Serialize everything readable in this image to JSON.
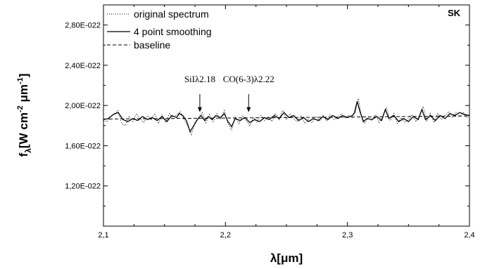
{
  "chart_data": {
    "type": "line",
    "title": "",
    "tag": "SK",
    "xlabel": "λ[μm]",
    "ylabel": {
      "main": "f",
      "sub": "λ",
      "rest": "[W cm",
      "sup1": "-2",
      "mid": " μm",
      "sup2": "-1",
      "end": "]"
    },
    "xlim": [
      2.1,
      2.4
    ],
    "ylim": [
      8e-23,
      3e-22
    ],
    "xticks": [
      2.1,
      2.2,
      2.3,
      2.4
    ],
    "xtick_labels": [
      "2,1",
      "2,2",
      "2,3",
      "2,4"
    ],
    "yticks": [
      1.2e-22,
      1.6e-22,
      2e-22,
      2.4e-22,
      2.8e-22
    ],
    "ytick_labels": [
      "1,20E-022",
      "1,60E-022",
      "2,00E-022",
      "2,40E-022",
      "2,80E-022"
    ],
    "legend": {
      "placement": "top-left",
      "entries": [
        {
          "label": "original spectrum",
          "style": "dotted"
        },
        {
          "label": "4 point smoothing",
          "style": "solid"
        },
        {
          "label": "baseline",
          "style": "dashed"
        }
      ]
    },
    "annotations": [
      {
        "text": "SiIλ2.18",
        "x": 2.179,
        "y": 1.92e-22
      },
      {
        "text": "CO(6-3)λ2.22",
        "x": 2.219,
        "y": 1.92e-22
      }
    ],
    "series": [
      {
        "name": "4 point smoothing",
        "style": "solid",
        "points": [
          [
            2.1,
            1.86e-22
          ],
          [
            2.104,
            1.87e-22
          ],
          [
            2.108,
            1.91e-22
          ],
          [
            2.112,
            1.93e-22
          ],
          [
            2.116,
            1.86e-22
          ],
          [
            2.12,
            1.84e-22
          ],
          [
            2.124,
            1.87e-22
          ],
          [
            2.128,
            1.85e-22
          ],
          [
            2.132,
            1.89e-22
          ],
          [
            2.136,
            1.86e-22
          ],
          [
            2.14,
            1.88e-22
          ],
          [
            2.144,
            1.85e-22
          ],
          [
            2.148,
            1.89e-22
          ],
          [
            2.152,
            1.84e-22
          ],
          [
            2.156,
            1.9e-22
          ],
          [
            2.16,
            1.88e-22
          ],
          [
            2.162,
            1.92e-22
          ],
          [
            2.165,
            1.9e-22
          ],
          [
            2.168,
            1.85e-22
          ],
          [
            2.171,
            1.74e-22
          ],
          [
            2.174,
            1.8e-22
          ],
          [
            2.177,
            1.86e-22
          ],
          [
            2.18,
            1.9e-22
          ],
          [
            2.183,
            1.85e-22
          ],
          [
            2.186,
            1.89e-22
          ],
          [
            2.189,
            1.86e-22
          ],
          [
            2.192,
            1.9e-22
          ],
          [
            2.196,
            1.88e-22
          ],
          [
            2.199,
            1.92e-22
          ],
          [
            2.202,
            1.84e-22
          ],
          [
            2.205,
            1.79e-22
          ],
          [
            2.208,
            1.87e-22
          ],
          [
            2.212,
            1.85e-22
          ],
          [
            2.216,
            1.88e-22
          ],
          [
            2.22,
            1.83e-22
          ],
          [
            2.224,
            1.86e-22
          ],
          [
            2.228,
            1.84e-22
          ],
          [
            2.232,
            1.88e-22
          ],
          [
            2.236,
            1.86e-22
          ],
          [
            2.24,
            1.9e-22
          ],
          [
            2.244,
            1.87e-22
          ],
          [
            2.248,
            1.93e-22
          ],
          [
            2.252,
            1.88e-22
          ],
          [
            2.256,
            1.9e-22
          ],
          [
            2.26,
            1.85e-22
          ],
          [
            2.264,
            1.88e-22
          ],
          [
            2.268,
            1.84e-22
          ],
          [
            2.272,
            1.87e-22
          ],
          [
            2.276,
            1.85e-22
          ],
          [
            2.28,
            1.89e-22
          ],
          [
            2.284,
            1.86e-22
          ],
          [
            2.288,
            1.9e-22
          ],
          [
            2.292,
            1.87e-22
          ],
          [
            2.296,
            1.9e-22
          ],
          [
            2.3,
            1.88e-22
          ],
          [
            2.304,
            1.9e-22
          ],
          [
            2.306,
            1.93e-22
          ],
          [
            2.308,
            2.04e-22
          ],
          [
            2.31,
            1.95e-22
          ],
          [
            2.313,
            1.84e-22
          ],
          [
            2.316,
            1.87e-22
          ],
          [
            2.32,
            1.86e-22
          ],
          [
            2.324,
            1.89e-22
          ],
          [
            2.328,
            1.85e-22
          ],
          [
            2.331,
            1.96e-22
          ],
          [
            2.334,
            1.87e-22
          ],
          [
            2.338,
            1.9e-22
          ],
          [
            2.342,
            1.84e-22
          ],
          [
            2.346,
            1.87e-22
          ],
          [
            2.35,
            1.84e-22
          ],
          [
            2.354,
            1.89e-22
          ],
          [
            2.358,
            1.86e-22
          ],
          [
            2.361,
            1.96e-22
          ],
          [
            2.364,
            1.86e-22
          ],
          [
            2.368,
            1.9e-22
          ],
          [
            2.372,
            1.85e-22
          ],
          [
            2.376,
            1.9e-22
          ],
          [
            2.38,
            1.87e-22
          ],
          [
            2.384,
            1.92e-22
          ],
          [
            2.388,
            1.9e-22
          ],
          [
            2.392,
            1.93e-22
          ],
          [
            2.396,
            1.91e-22
          ],
          [
            2.4,
            1.9e-22
          ]
        ]
      },
      {
        "name": "original spectrum",
        "style": "dotted",
        "points": [
          [
            2.1,
            1.85e-22
          ],
          [
            2.103,
            1.84e-22
          ],
          [
            2.106,
            1.89e-22
          ],
          [
            2.109,
            1.92e-22
          ],
          [
            2.112,
            1.95e-22
          ],
          [
            2.115,
            1.82e-22
          ],
          [
            2.118,
            1.8e-22
          ],
          [
            2.121,
            1.89e-22
          ],
          [
            2.124,
            1.84e-22
          ],
          [
            2.127,
            1.92e-22
          ],
          [
            2.13,
            1.87e-22
          ],
          [
            2.133,
            1.83e-22
          ],
          [
            2.136,
            1.9e-22
          ],
          [
            2.139,
            1.86e-22
          ],
          [
            2.142,
            1.92e-22
          ],
          [
            2.145,
            1.82e-22
          ],
          [
            2.148,
            1.91e-22
          ],
          [
            2.151,
            1.83e-22
          ],
          [
            2.154,
            1.92e-22
          ],
          [
            2.157,
            1.87e-22
          ],
          [
            2.16,
            1.91e-22
          ],
          [
            2.163,
            1.94e-22
          ],
          [
            2.166,
            1.86e-22
          ],
          [
            2.169,
            1.8e-22
          ],
          [
            2.172,
            1.71e-22
          ],
          [
            2.175,
            1.83e-22
          ],
          [
            2.178,
            1.88e-22
          ],
          [
            2.181,
            1.93e-22
          ],
          [
            2.184,
            1.83e-22
          ],
          [
            2.187,
            1.91e-22
          ],
          [
            2.19,
            1.84e-22
          ],
          [
            2.193,
            1.92e-22
          ],
          [
            2.196,
            1.86e-22
          ],
          [
            2.199,
            1.95e-22
          ],
          [
            2.202,
            1.82e-22
          ],
          [
            2.205,
            1.76e-22
          ],
          [
            2.208,
            1.89e-22
          ],
          [
            2.211,
            1.82e-22
          ],
          [
            2.214,
            1.9e-22
          ],
          [
            2.217,
            1.85e-22
          ],
          [
            2.22,
            1.8e-22
          ],
          [
            2.223,
            1.88e-22
          ],
          [
            2.226,
            1.83e-22
          ],
          [
            2.229,
            1.9e-22
          ],
          [
            2.232,
            1.85e-22
          ],
          [
            2.235,
            1.89e-22
          ],
          [
            2.238,
            1.84e-22
          ],
          [
            2.241,
            1.92e-22
          ],
          [
            2.244,
            1.86e-22
          ],
          [
            2.247,
            1.95e-22
          ],
          [
            2.25,
            1.86e-22
          ],
          [
            2.253,
            1.92e-22
          ],
          [
            2.256,
            1.87e-22
          ],
          [
            2.259,
            1.84e-22
          ],
          [
            2.262,
            1.9e-22
          ],
          [
            2.265,
            1.82e-22
          ],
          [
            2.268,
            1.86e-22
          ],
          [
            2.271,
            1.83e-22
          ],
          [
            2.274,
            1.89e-22
          ],
          [
            2.277,
            1.84e-22
          ],
          [
            2.28,
            1.9e-22
          ],
          [
            2.283,
            1.85e-22
          ],
          [
            2.286,
            1.91e-22
          ],
          [
            2.289,
            1.86e-22
          ],
          [
            2.292,
            1.88e-22
          ],
          [
            2.295,
            1.92e-22
          ],
          [
            2.298,
            1.87e-22
          ],
          [
            2.301,
            1.9e-22
          ],
          [
            2.304,
            1.88e-22
          ],
          [
            2.307,
            2.01e-22
          ],
          [
            2.309,
            2.07e-22
          ],
          [
            2.311,
            1.92e-22
          ],
          [
            2.314,
            1.82e-22
          ],
          [
            2.317,
            1.88e-22
          ],
          [
            2.32,
            1.85e-22
          ],
          [
            2.323,
            1.91e-22
          ],
          [
            2.326,
            1.83e-22
          ],
          [
            2.329,
            1.9e-22
          ],
          [
            2.332,
            1.98e-22
          ],
          [
            2.335,
            1.85e-22
          ],
          [
            2.338,
            1.92e-22
          ],
          [
            2.341,
            1.82e-22
          ],
          [
            2.344,
            1.88e-22
          ],
          [
            2.347,
            1.83e-22
          ],
          [
            2.35,
            1.86e-22
          ],
          [
            2.353,
            1.91e-22
          ],
          [
            2.356,
            1.84e-22
          ],
          [
            2.359,
            1.9e-22
          ],
          [
            2.362,
            1.99e-22
          ],
          [
            2.365,
            1.84e-22
          ],
          [
            2.368,
            1.92e-22
          ],
          [
            2.371,
            1.83e-22
          ],
          [
            2.374,
            1.92e-22
          ],
          [
            2.377,
            1.86e-22
          ],
          [
            2.38,
            1.9e-22
          ],
          [
            2.383,
            1.94e-22
          ],
          [
            2.386,
            1.88e-22
          ],
          [
            2.389,
            1.93e-22
          ],
          [
            2.392,
            1.89e-22
          ],
          [
            2.395,
            1.93e-22
          ],
          [
            2.398,
            1.88e-22
          ],
          [
            2.4,
            1.91e-22
          ]
        ]
      },
      {
        "name": "baseline",
        "style": "dashed",
        "points": [
          [
            2.1,
            1.865e-22
          ],
          [
            2.4,
            1.895e-22
          ]
        ]
      }
    ]
  }
}
